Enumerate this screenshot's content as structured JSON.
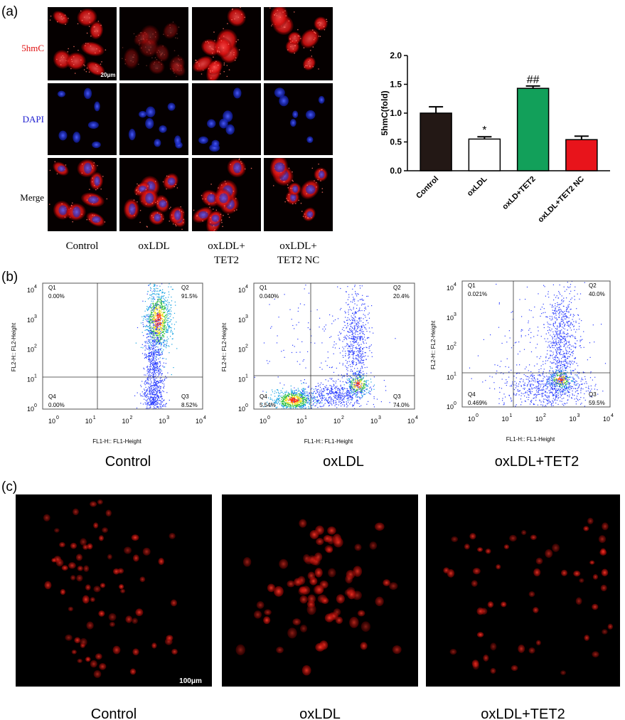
{
  "panel_labels": [
    "(a)",
    "(b)",
    "(c)"
  ],
  "panel_a": {
    "row_labels": [
      "5hmC",
      "DAPI",
      "Merge"
    ],
    "column_labels": [
      [
        "Control"
      ],
      [
        "oxLDL"
      ],
      [
        "oxLDL+",
        "TET2"
      ],
      [
        "oxLDL+",
        "TET2 NC"
      ]
    ],
    "scale_bar": "20μm"
  },
  "chart_data": {
    "type": "bar",
    "y_label": "5hmC(fold)",
    "categories": [
      "Control",
      "oxLDL",
      "oxLD+TET2",
      "oxLDL+TET2 NC"
    ],
    "values": [
      1.0,
      0.55,
      1.43,
      0.54
    ],
    "errors": [
      0.11,
      0.04,
      0.04,
      0.06
    ],
    "colors": [
      "#231815",
      "#ffffff",
      "#12a05a",
      "#e8141b"
    ],
    "annotations": [
      {
        "index": 1,
        "text": "*"
      },
      {
        "index": 2,
        "text": "##"
      }
    ],
    "ylim": [
      0,
      2
    ],
    "yticks": [
      {
        "value": 0,
        "label": "0.0"
      },
      0.5,
      {
        "value": 1,
        "label": "1.0"
      },
      1.5,
      {
        "value": 2,
        "label": "2.0"
      }
    ]
  },
  "panel_b": {
    "tick_base": "10",
    "tick_exponents": [
      "0",
      "1",
      "2",
      "3",
      "4"
    ],
    "x_axis_label": "FL1-H:: FL1-Height",
    "y_axis_label": "FL2-H:: FL2-Height",
    "plots": [
      {
        "name": "Control",
        "quadrants": [
          {
            "label": "Q1",
            "value": "0.00%"
          },
          {
            "label": "Q2",
            "value": "91.5%"
          },
          {
            "label": "Q3",
            "value": "8.52%"
          },
          {
            "label": "Q4",
            "value": "0.00%"
          }
        ]
      },
      {
        "name": "oxLDL",
        "quadrants": [
          {
            "label": "Q1",
            "value": "0.040%"
          },
          {
            "label": "Q2",
            "value": "20.4%"
          },
          {
            "label": "Q3",
            "value": "74.0%"
          },
          {
            "label": "Q4",
            "value": "5.54%"
          }
        ]
      },
      {
        "name": "oxLDL+TET2",
        "quadrants": [
          {
            "label": "Q1",
            "value": "0.021%"
          },
          {
            "label": "Q2",
            "value": "40.0%"
          },
          {
            "label": "Q3",
            "value": "59.5%"
          },
          {
            "label": "Q4",
            "value": "0.469%"
          }
        ]
      }
    ]
  },
  "panel_c": {
    "scale_bar": "100μm",
    "labels": [
      "Control",
      "oxLDL",
      "oxLDL+TET2"
    ]
  }
}
